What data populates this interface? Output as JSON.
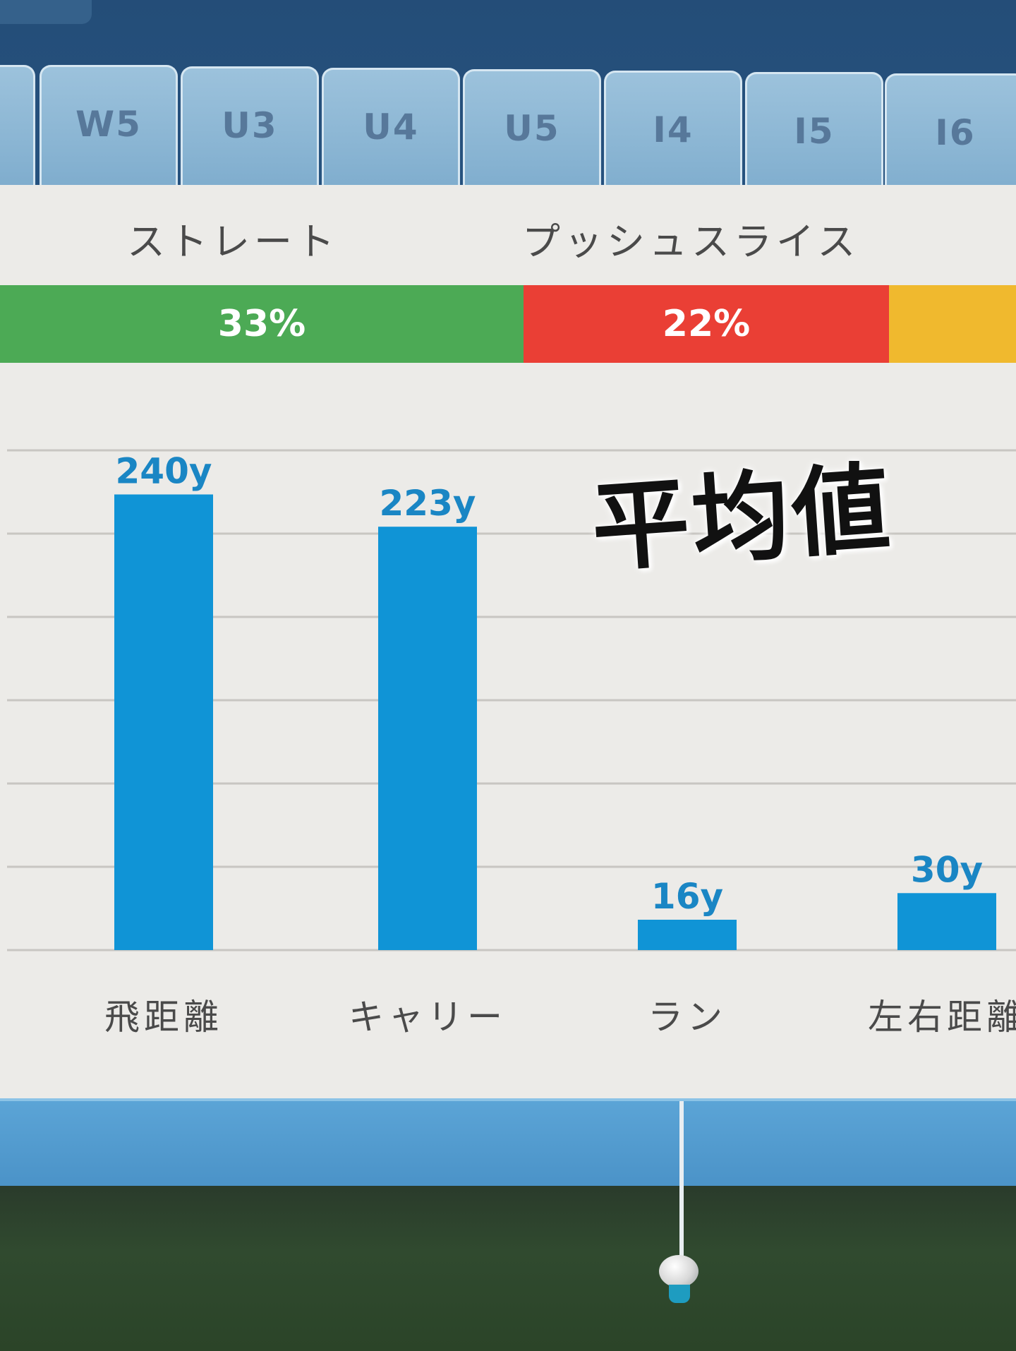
{
  "tabs": [
    "W5",
    "U3",
    "U4",
    "U5",
    "I4",
    "I5",
    "I6"
  ],
  "shot_types": [
    {
      "label": "ストレート",
      "percent": "33%",
      "color": "#4caa55"
    },
    {
      "label": "プッシュスライス",
      "percent": "22%",
      "color": "#ea3f35"
    },
    {
      "label": "",
      "percent": "",
      "color": "#f0b92e"
    }
  ],
  "colors": {
    "bar": "#1094d6",
    "value_label": "#1a86c4",
    "grid": "#c8c6c2",
    "panel": "#ecebe8"
  },
  "chart_data": {
    "type": "bar",
    "title": "平均値",
    "categories": [
      "飛距離",
      "キャリー",
      "ラン",
      "左右距離"
    ],
    "values": [
      240,
      223,
      16,
      30
    ],
    "value_labels": [
      "240y",
      "223y",
      "16y",
      "30y"
    ],
    "unit": "y",
    "ylim": [
      0,
      261
    ],
    "grid": true,
    "legend": "none"
  }
}
